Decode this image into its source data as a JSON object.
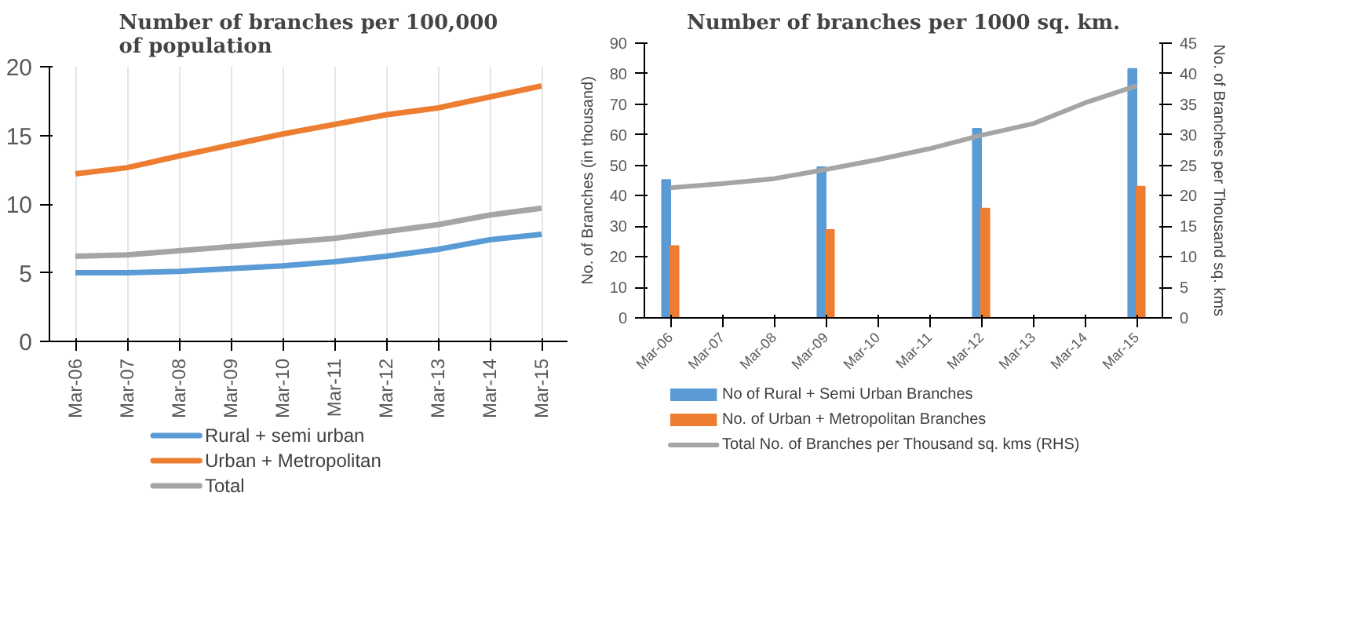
{
  "chart_data": [
    {
      "type": "line",
      "title": "Number of branches per 100,000 of population",
      "categories": [
        "Mar-06",
        "Mar-07",
        "Mar-08",
        "Mar-09",
        "Mar-10",
        "Mar-11",
        "Mar-12",
        "Mar-13",
        "Mar-14",
        "Mar-15"
      ],
      "ylim": [
        0,
        20
      ],
      "yticks": [
        0,
        5,
        10,
        15,
        20
      ],
      "grid": "x",
      "legend": "bottom",
      "series": [
        {
          "name": "Rural + semi urban",
          "color": "#5b9bd5",
          "values": [
            5.0,
            5.0,
            5.1,
            5.3,
            5.5,
            5.8,
            6.2,
            6.7,
            7.4,
            7.8
          ]
        },
        {
          "name": "Urban + Metropolitan",
          "color": "#ed7d31",
          "values": [
            12.2,
            12.65,
            13.5,
            14.3,
            15.1,
            15.8,
            16.5,
            17.0,
            17.8,
            18.6
          ]
        },
        {
          "name": "Total",
          "color": "#a5a5a5",
          "values": [
            6.2,
            6.3,
            6.6,
            6.9,
            7.2,
            7.5,
            8.0,
            8.5,
            9.2,
            9.7
          ]
        }
      ]
    },
    {
      "type": "bar",
      "title": "Number of branches per 1000 sq. km.",
      "categories": [
        "Mar-06",
        "Mar-07",
        "Mar-08",
        "Mar-09",
        "Mar-10",
        "Mar-11",
        "Mar-12",
        "Mar-13",
        "Mar-14",
        "Mar-15"
      ],
      "ylabel": "No. of Branches (in thousand)",
      "y2label": "No. of Branches per Thousand sq. kms",
      "ylim": [
        0,
        90
      ],
      "yticks": [
        0,
        10,
        20,
        30,
        40,
        50,
        60,
        70,
        80,
        90
      ],
      "y2lim": [
        0,
        45
      ],
      "y2ticks": [
        0,
        5,
        10,
        15,
        20,
        25,
        30,
        35,
        40,
        45
      ],
      "grid": false,
      "legend": "bottom",
      "series": [
        {
          "name": "No of Rural + Semi Urban Branches",
          "color": "#5b9bd5",
          "values": [
            45.2,
            null,
            null,
            49.4,
            null,
            null,
            62,
            null,
            null,
            81.6
          ]
        },
        {
          "name": "No. of Urban + Metropolitan Branches",
          "color": "#ed7d31",
          "values": [
            23.5,
            null,
            null,
            28.8,
            null,
            null,
            35.8,
            null,
            null,
            43
          ]
        },
        {
          "name": "Total No. of Branches per Thousand sq. kms (RHS)",
          "type": "line",
          "axis": "y2",
          "color": "#a5a5a5",
          "values": [
            21.3,
            22,
            22.8,
            24.3,
            25.9,
            27.7,
            29.9,
            31.8,
            35.2,
            38
          ]
        }
      ]
    }
  ]
}
